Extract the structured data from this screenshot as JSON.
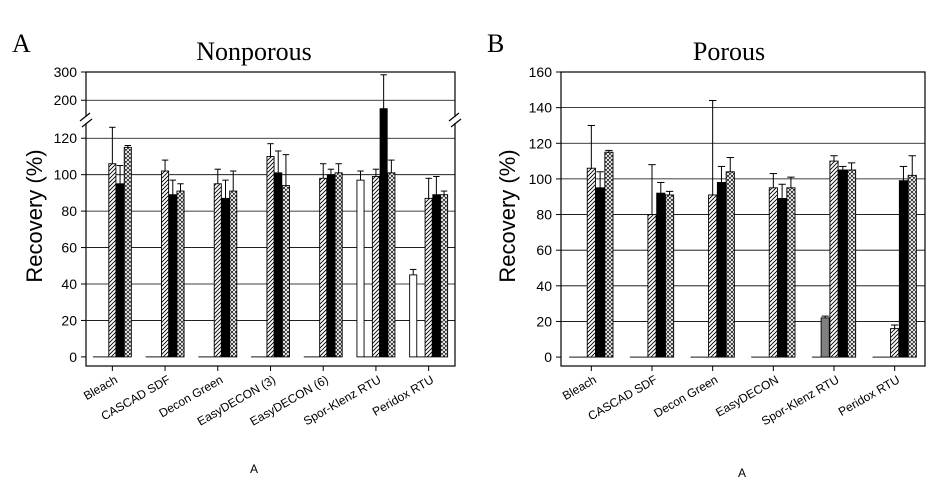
{
  "colors": {
    "bar_white": "#ffffff",
    "bar_light_gray": "#bdbdbd",
    "bar_dark_gray": "#808080",
    "bar_black": "#000000",
    "axis": "#000000",
    "grid": "#000000"
  },
  "chart_data": [
    {
      "type": "bar",
      "panel_letter": "A",
      "title": "Nonporous",
      "xlabel": "A",
      "ylabel": "Recovery (%)",
      "categories": [
        "Bleach",
        "CASCAD SDF",
        "Decon Green",
        "EasyDECON (3)",
        "EasyDECON (6)",
        "Spor-Klenz RTU",
        "Peridox RTU"
      ],
      "y_break": {
        "lower_range": [
          -5,
          130
        ],
        "upper_range": [
          130,
          300
        ],
        "lower_ticks": [
          0,
          20,
          40,
          60,
          80,
          100,
          120
        ],
        "upper_ticks": [
          200,
          300
        ]
      },
      "grid": true,
      "series_styles": [
        "white",
        "light-gray",
        "diagonal-hatch",
        "black",
        "cross-hatch"
      ],
      "series": [
        {
          "values": [
            0,
            0,
            0,
            0,
            0,
            97,
            45
          ],
          "errors": [
            0,
            0,
            0,
            0,
            0,
            5,
            3
          ]
        },
        {
          "values": [
            0,
            0,
            0,
            0,
            0,
            0,
            0
          ],
          "errors": [
            0,
            0,
            0,
            0,
            0,
            0,
            0
          ]
        },
        {
          "values": [
            106,
            102,
            95,
            110,
            98,
            99,
            87
          ],
          "errors": [
            20,
            6,
            8,
            7,
            8,
            4,
            11
          ]
        },
        {
          "values": [
            95,
            89,
            87,
            101,
            100,
            170,
            89
          ],
          "errors": [
            10,
            8,
            10,
            12,
            3,
            120,
            10
          ]
        },
        {
          "values": [
            115,
            91,
            91,
            94,
            101,
            101,
            89
          ],
          "errors": [
            1,
            4,
            11,
            17,
            5,
            7,
            2
          ]
        }
      ]
    },
    {
      "type": "bar",
      "panel_letter": "B",
      "title": "Porous",
      "xlabel": "A",
      "ylabel": "Recovery (%)",
      "categories": [
        "Bleach",
        "CASCAD SDF",
        "Decon Green",
        "EasyDECON",
        "Spor-Klenz RTU",
        "Peridox RTU"
      ],
      "ylim": [
        -5,
        160
      ],
      "yticks": [
        0,
        20,
        40,
        60,
        80,
        100,
        120,
        140,
        160
      ],
      "grid": true,
      "series_styles": [
        "white",
        "dark-gray",
        "diagonal-hatch",
        "black",
        "cross-hatch"
      ],
      "series": [
        {
          "values": [
            0,
            0,
            0,
            0,
            0,
            0
          ],
          "errors": [
            0,
            0,
            0,
            0,
            0,
            0
          ]
        },
        {
          "values": [
            0,
            0,
            0,
            0,
            22,
            0
          ],
          "errors": [
            0,
            0,
            0,
            0,
            1,
            0
          ]
        },
        {
          "values": [
            106,
            80,
            91,
            95,
            110,
            16
          ],
          "errors": [
            24,
            28,
            53,
            8,
            3,
            2
          ]
        },
        {
          "values": [
            95,
            92,
            98,
            89,
            105,
            99
          ],
          "errors": [
            9,
            6,
            9,
            8,
            2,
            8
          ]
        },
        {
          "values": [
            115,
            91,
            104,
            95,
            105,
            102
          ],
          "errors": [
            1,
            2,
            8,
            6,
            4,
            11
          ]
        }
      ]
    }
  ]
}
